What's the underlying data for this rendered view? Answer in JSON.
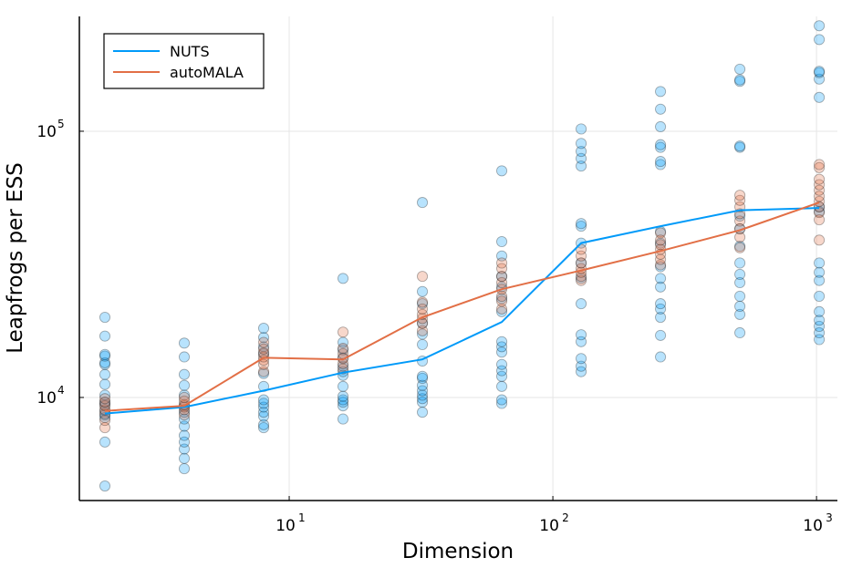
{
  "chart_data": {
    "type": "scatter",
    "title": "",
    "xlabel": "Dimension",
    "ylabel": "Leapfrogs per ESS",
    "xscale": "log",
    "yscale": "log",
    "xlim": [
      1.6,
      1200
    ],
    "ylim": [
      4100,
      270000
    ],
    "grid": true,
    "legend_position": "top-left",
    "x_ticks": [
      {
        "value": 10,
        "base": "10",
        "exp": "1"
      },
      {
        "value": 100,
        "base": "10",
        "exp": "2"
      },
      {
        "value": 1000,
        "base": "10",
        "exp": "3"
      }
    ],
    "y_ticks": [
      {
        "value": 10000,
        "base": "10",
        "exp": "4"
      },
      {
        "value": 100000,
        "base": "10",
        "exp": "5"
      }
    ],
    "series": [
      {
        "name": "NUTS",
        "color": "#009af9",
        "line": {
          "x": [
            2,
            4,
            8,
            16,
            32,
            64,
            128,
            256,
            512,
            1024
          ],
          "y": [
            8700,
            9200,
            10600,
            12400,
            13900,
            19200,
            38000,
            44000,
            50500,
            51500
          ]
        },
        "points": [
          {
            "x": 2,
            "y": [
              4650,
              6800,
              8400,
              8600,
              8900,
              9400,
              9600,
              10200,
              11200,
              12200,
              13300,
              13500,
              14300,
              14500,
              17000,
              20000
            ]
          },
          {
            "x": 4,
            "y": [
              5400,
              5900,
              6400,
              6800,
              7200,
              7800,
              8300,
              8800,
              9300,
              10200,
              11100,
              12200,
              14200,
              16000
            ]
          },
          {
            "x": 8,
            "y": [
              7700,
              7900,
              8500,
              8800,
              9200,
              9500,
              9800,
              11000,
              12300,
              14600,
              15500,
              16800,
              18200
            ]
          },
          {
            "x": 16,
            "y": [
              8300,
              9300,
              9600,
              9800,
              10100,
              11000,
              12100,
              12500,
              13100,
              14100,
              15100,
              16100,
              28000
            ]
          },
          {
            "x": 32,
            "y": [
              8800,
              9600,
              9900,
              10200,
              10600,
              11100,
              11800,
              12000,
              13700,
              15800,
              17300,
              19000,
              22500,
              25000,
              54000
            ]
          },
          {
            "x": 64,
            "y": [
              9500,
              9800,
              11000,
              12000,
              12600,
              13300,
              14800,
              15500,
              16200,
              21000,
              23500,
              26000,
              28500,
              34000,
              38500,
              71000
            ]
          },
          {
            "x": 128,
            "y": [
              12500,
              13100,
              14000,
              16200,
              17200,
              22500,
              28000,
              32000,
              38000,
              44000,
              45000,
              74000,
              79000,
              84000,
              90000,
              102000
            ]
          },
          {
            "x": 256,
            "y": [
              14200,
              17100,
              20000,
              21500,
              22500,
              26000,
              28000,
              31000,
              38000,
              42000,
              75000,
              77000,
              87000,
              89000,
              104000,
              121000,
              141000
            ]
          },
          {
            "x": 512,
            "y": [
              17500,
              20500,
              22000,
              24000,
              27000,
              29000,
              32000,
              37000,
              43000,
              48000,
              87000,
              88000,
              154000,
              156000,
              171000
            ]
          },
          {
            "x": 1024,
            "y": [
              16500,
              17500,
              18500,
              19500,
              21000,
              24000,
              27500,
              29500,
              32000,
              50000,
              52000,
              134000,
              157000,
              166000,
              168000,
              221000,
              249000
            ]
          }
        ]
      },
      {
        "name": "autoMALA",
        "color": "#e26f46",
        "line": {
          "x": [
            2,
            4,
            8,
            16,
            32,
            64,
            128,
            256,
            512,
            1024
          ],
          "y": [
            8900,
            9300,
            14100,
            13900,
            20000,
            25500,
            30000,
            35500,
            42500,
            54000
          ]
        },
        "points": [
          {
            "x": 2,
            "y": [
              7700,
              8200,
              8700,
              9000,
              9300,
              9600,
              9900
            ]
          },
          {
            "x": 4,
            "y": [
              8600,
              9000,
              9200,
              9400,
              9700,
              10000
            ]
          },
          {
            "x": 8,
            "y": [
              12500,
              13300,
              13800,
              14200,
              14700,
              15200,
              16100
            ]
          },
          {
            "x": 16,
            "y": [
              12800,
              13400,
              14000,
              14600,
              15300,
              17600
            ]
          },
          {
            "x": 32,
            "y": [
              17800,
              19000,
              19800,
              20500,
              21500,
              22800,
              28500
            ]
          },
          {
            "x": 64,
            "y": [
              21500,
              23000,
              24000,
              25500,
              27000,
              28500,
              30500,
              32000
            ]
          },
          {
            "x": 128,
            "y": [
              27500,
              28500,
              29500,
              30500,
              32000,
              34000,
              36000
            ]
          },
          {
            "x": 256,
            "y": [
              31500,
              33000,
              34500,
              36000,
              37500,
              39000,
              41500
            ]
          },
          {
            "x": 512,
            "y": [
              36500,
              40000,
              43000,
              46000,
              49000,
              52000,
              55000,
              57500
            ]
          },
          {
            "x": 1024,
            "y": [
              39000,
              46500,
              49500,
              52000,
              54500,
              57000,
              60000,
              63000,
              66000,
              73000,
              75000
            ]
          }
        ]
      }
    ]
  }
}
